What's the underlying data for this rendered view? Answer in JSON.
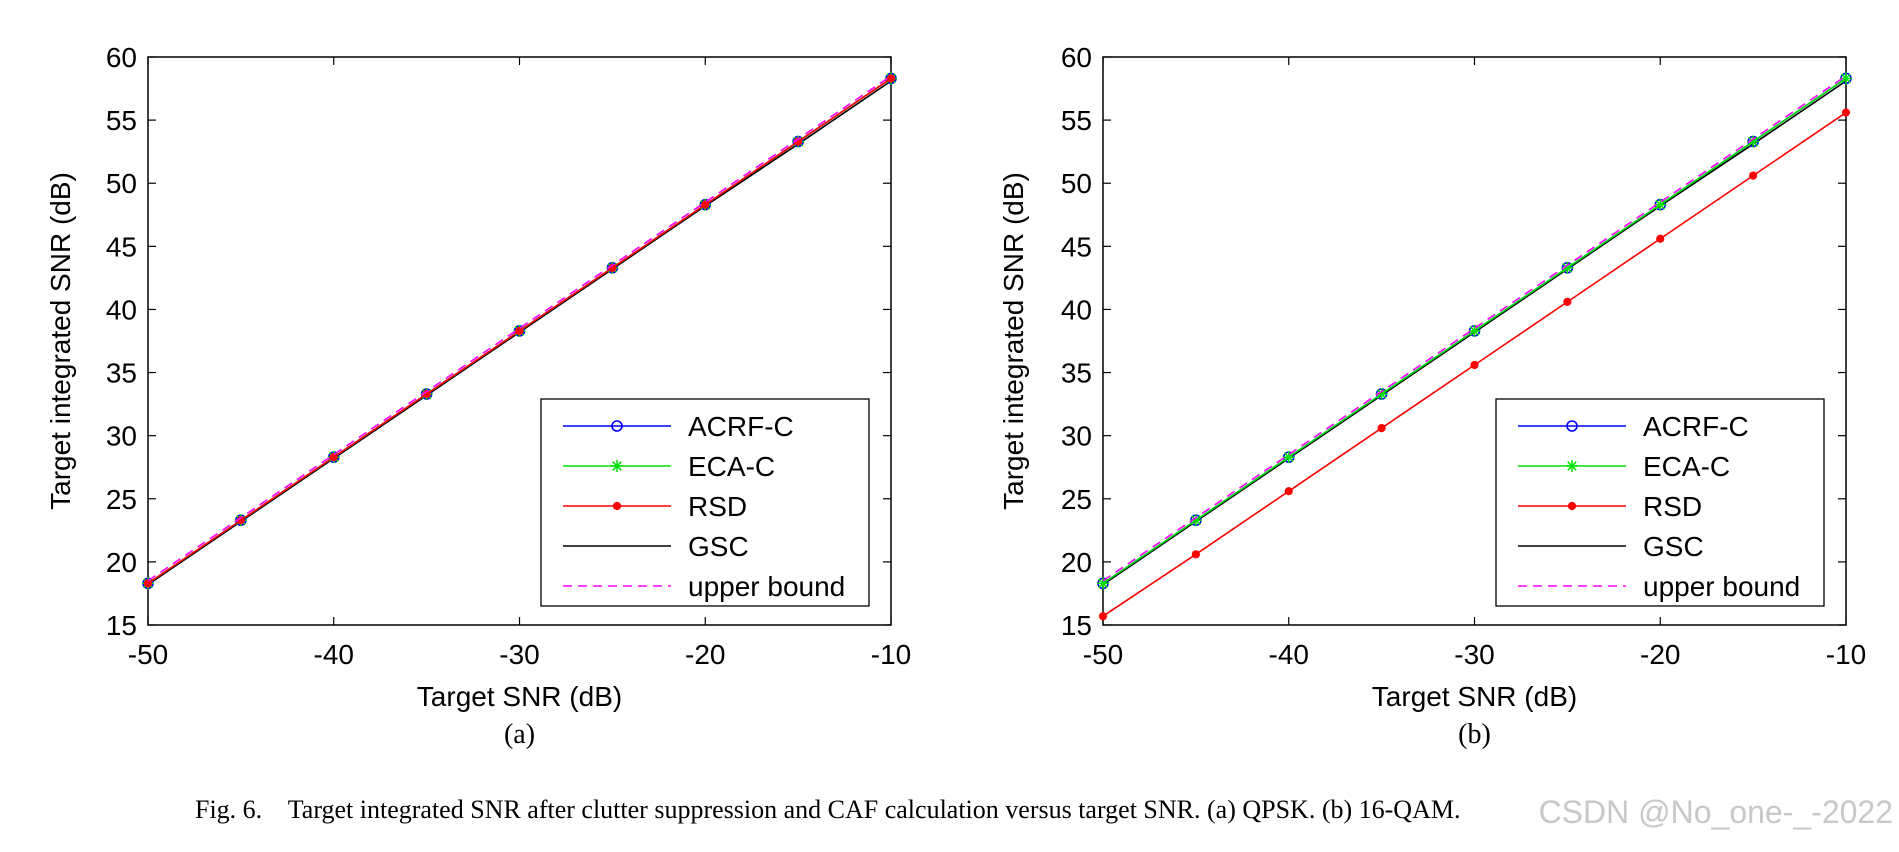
{
  "figure": {
    "caption": "Fig. 6.    Target integrated SNR after clutter suppression and CAF calculation versus target SNR. (a) QPSK. (b) 16-QAM.",
    "watermark": "CSDN @No_one-_-2022"
  },
  "chart_data": [
    {
      "id": "a",
      "type": "line",
      "sublabel": "(a)",
      "title": "",
      "xlabel": "Target SNR (dB)",
      "ylabel": "Target integrated SNR (dB)",
      "xlim": [
        -50,
        -10
      ],
      "ylim": [
        15,
        60
      ],
      "xticks": [
        -50,
        -40,
        -30,
        -20,
        -10
      ],
      "yticks": [
        15,
        20,
        25,
        30,
        35,
        40,
        45,
        50,
        55,
        60
      ],
      "grid": false,
      "legend_position": "bottom-right",
      "x": [
        -50,
        -45,
        -40,
        -35,
        -30,
        -25,
        -20,
        -15,
        -10
      ],
      "series": [
        {
          "name": "ACRF-C",
          "color": "#0000ff",
          "marker": "circle",
          "dash": "solid",
          "values": [
            18.3,
            23.3,
            28.3,
            33.3,
            38.3,
            43.3,
            48.3,
            53.3,
            58.3
          ]
        },
        {
          "name": "ECA-C",
          "color": "#00e000",
          "marker": "star",
          "dash": "solid",
          "values": [
            18.3,
            23.3,
            28.3,
            33.3,
            38.3,
            43.3,
            48.3,
            53.3,
            58.3
          ]
        },
        {
          "name": "RSD",
          "color": "#ff0000",
          "marker": "dot",
          "dash": "solid",
          "values": [
            18.3,
            23.3,
            28.3,
            33.3,
            38.3,
            43.3,
            48.3,
            53.3,
            58.3
          ]
        },
        {
          "name": "GSC",
          "color": "#000000",
          "marker": "none",
          "dash": "solid",
          "values": [
            18.2,
            23.2,
            28.2,
            33.2,
            38.2,
            43.2,
            48.2,
            53.1,
            58.1
          ]
        },
        {
          "name": "upper bound",
          "color": "#ff00ff",
          "marker": "none",
          "dash": "dashed",
          "values": [
            18.5,
            23.5,
            28.5,
            33.5,
            38.5,
            43.5,
            48.5,
            53.5,
            58.5
          ]
        }
      ]
    },
    {
      "id": "b",
      "type": "line",
      "sublabel": "(b)",
      "title": "",
      "xlabel": "Target SNR (dB)",
      "ylabel": "Target integrated SNR (dB)",
      "xlim": [
        -50,
        -10
      ],
      "ylim": [
        15,
        60
      ],
      "xticks": [
        -50,
        -40,
        -30,
        -20,
        -10
      ],
      "yticks": [
        15,
        20,
        25,
        30,
        35,
        40,
        45,
        50,
        55,
        60
      ],
      "grid": false,
      "legend_position": "bottom-right",
      "x": [
        -50,
        -45,
        -40,
        -35,
        -30,
        -25,
        -20,
        -15,
        -10
      ],
      "series": [
        {
          "name": "ACRF-C",
          "color": "#0000ff",
          "marker": "circle",
          "dash": "solid",
          "values": [
            18.3,
            23.3,
            28.3,
            33.3,
            38.3,
            43.3,
            48.3,
            53.3,
            58.3
          ]
        },
        {
          "name": "ECA-C",
          "color": "#00e000",
          "marker": "star",
          "dash": "solid",
          "values": [
            18.3,
            23.3,
            28.3,
            33.3,
            38.3,
            43.3,
            48.3,
            53.3,
            58.3
          ]
        },
        {
          "name": "RSD",
          "color": "#ff0000",
          "marker": "dot",
          "dash": "solid",
          "values": [
            15.7,
            20.6,
            25.6,
            30.6,
            35.6,
            40.6,
            45.6,
            50.6,
            55.6
          ]
        },
        {
          "name": "GSC",
          "color": "#000000",
          "marker": "none",
          "dash": "solid",
          "values": [
            18.2,
            23.2,
            28.2,
            33.2,
            38.2,
            43.2,
            48.2,
            53.1,
            58.1
          ]
        },
        {
          "name": "upper bound",
          "color": "#ff00ff",
          "marker": "none",
          "dash": "dashed",
          "values": [
            18.5,
            23.5,
            28.5,
            33.5,
            38.5,
            43.5,
            48.5,
            53.5,
            58.5
          ]
        }
      ]
    }
  ]
}
